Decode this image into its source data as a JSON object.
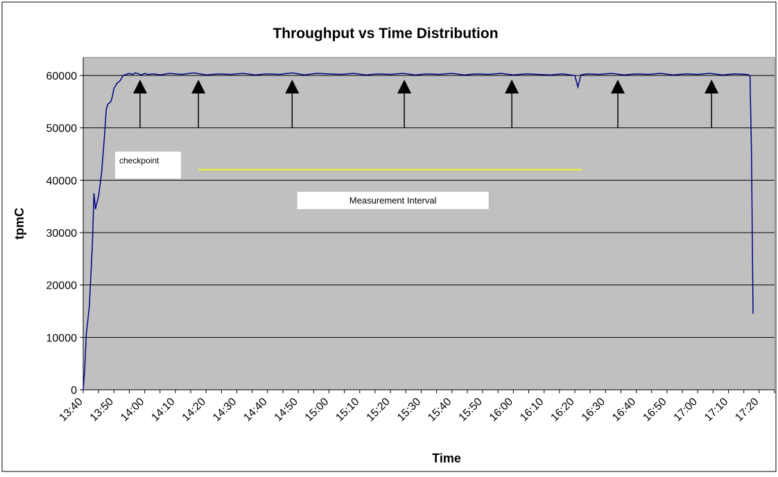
{
  "chart_data": {
    "type": "line",
    "title": "Throughput vs Time Distribution",
    "xlabel": "Time",
    "ylabel": "tpmC",
    "ylim": [
      0,
      60000
    ],
    "yticks": [
      0,
      10000,
      20000,
      30000,
      40000,
      50000,
      60000
    ],
    "yticks_label": [
      "0",
      "10000",
      "20000",
      "30000",
      "40000",
      "50000",
      "60000"
    ],
    "xticks": [
      "13:40",
      "13:50",
      "14:00",
      "14:10",
      "14:20",
      "14:30",
      "14:40",
      "14:50",
      "15:00",
      "15:10",
      "15:20",
      "15:30",
      "15:40",
      "15:50",
      "16:00",
      "16:10",
      "16:20",
      "16:30",
      "16:40",
      "16:50",
      "17:00",
      "17:10",
      "17:20"
    ],
    "x_minutes_per_tick": 10,
    "grid": true,
    "colors": {
      "plot_bg": "#c0c0c0",
      "line": "#000080",
      "interval": "#ffff00",
      "arrow": "#000000"
    },
    "series": [
      {
        "minutes": [
          0,
          0.5,
          1,
          2,
          3,
          3.5,
          4,
          5,
          6,
          7,
          7.5,
          8,
          9,
          9.5,
          10,
          11,
          12,
          12.5,
          13,
          14,
          15,
          16,
          17,
          18,
          19,
          20,
          21,
          23,
          25,
          28,
          32,
          36,
          40,
          44,
          48,
          52,
          56,
          60,
          64,
          68,
          72,
          76,
          80,
          84,
          88,
          92,
          96,
          100,
          104,
          108,
          112,
          116,
          120,
          124,
          128,
          132,
          136,
          140,
          144,
          148,
          152,
          156,
          160,
          161,
          162,
          164,
          168,
          172,
          176,
          180,
          184,
          188,
          192,
          196,
          200,
          204,
          208,
          212,
          216,
          217,
          217.5,
          218
        ],
        "values": [
          0,
          4000,
          10500,
          16000,
          28000,
          37500,
          34500,
          37000,
          41500,
          49000,
          53500,
          54500,
          55000,
          56000,
          57500,
          58500,
          59000,
          59500,
          60000,
          60200,
          60400,
          60200,
          60500,
          60300,
          60100,
          60400,
          60200,
          60300,
          60100,
          60400,
          60200,
          60500,
          60100,
          60300,
          60200,
          60400,
          60100,
          60300,
          60200,
          60500,
          60100,
          60400,
          60300,
          60200,
          60400,
          60100,
          60300,
          60200,
          60400,
          60100,
          60300,
          60200,
          60400,
          60100,
          60300,
          60200,
          60400,
          60100,
          60300,
          60200,
          60100,
          60300,
          60000,
          57800,
          60100,
          60300,
          60200,
          60400,
          60100,
          60300,
          60200,
          60400,
          60100,
          60300,
          60200,
          60400,
          60100,
          60300,
          60200,
          60000,
          45000,
          14500
        ]
      }
    ],
    "checkpoints_minutes": [
      18.5,
      37.5,
      68,
      104.5,
      139.5,
      174,
      204.5
    ],
    "checkpoint_label": "checkpoint",
    "measurement_interval": {
      "label": "Measurement Interval",
      "start_minute": 37.5,
      "end_minute": 162.5,
      "level": 42000
    }
  }
}
